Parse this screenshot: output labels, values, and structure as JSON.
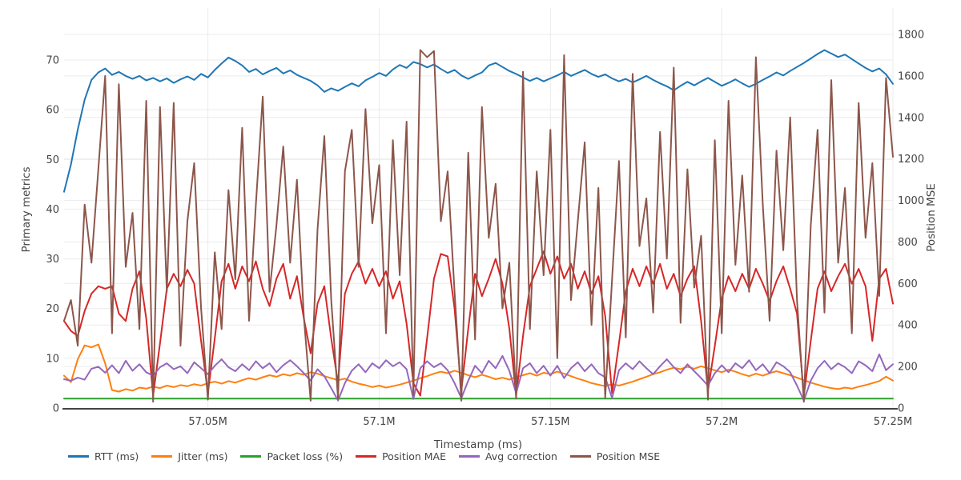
{
  "chart": {
    "x_axis": {
      "title": "Timestamp (ms)",
      "range": [
        57008000,
        57250000
      ],
      "tick_values": [
        57050000,
        57100000,
        57150000,
        57200000,
        57250000
      ],
      "tick_labels": [
        "57.05M",
        "57.1M",
        "57.15M",
        "57.2M",
        "57.25M"
      ]
    },
    "y_axis_left": {
      "title": "Primary metrics",
      "range": [
        0,
        70
      ],
      "ticks": [
        0,
        10,
        20,
        30,
        40,
        50,
        60,
        70
      ]
    },
    "y_axis_right": {
      "title": "Position MSE",
      "range": [
        0,
        1800
      ],
      "ticks": [
        0,
        200,
        400,
        600,
        800,
        1000,
        1200,
        1400,
        1600,
        1800
      ]
    },
    "style": {
      "grid_color": "#ebebeb",
      "axis_line_color": "#444444",
      "text_color": "#444444",
      "background": "#ffffff"
    }
  },
  "chart_data": {
    "type": "line",
    "title": "",
    "xlabel": "Timestamp (ms)",
    "ylabel_left": "Primary metrics",
    "ylabel_right": "Position MSE",
    "legend_position": "bottom",
    "grid": true,
    "x_start": 57008000,
    "x_step": 2000,
    "n_points": 122,
    "series": [
      {
        "name": "RTT (ms)",
        "color": "#1f77b4",
        "y_axis": "left",
        "values": [
          43.5,
          49.0,
          56.0,
          62.0,
          66.0,
          67.5,
          68.3,
          67.0,
          67.6,
          66.8,
          66.2,
          66.8,
          65.9,
          66.4,
          65.7,
          66.3,
          65.4,
          66.1,
          66.7,
          66.0,
          67.2,
          66.5,
          68.0,
          69.3,
          70.5,
          69.8,
          68.9,
          67.6,
          68.2,
          67.1,
          67.8,
          68.4,
          67.3,
          67.9,
          67.0,
          66.4,
          65.8,
          64.9,
          63.6,
          64.3,
          63.8,
          64.6,
          65.3,
          64.7,
          65.9,
          66.6,
          67.4,
          66.8,
          68.1,
          69.0,
          68.4,
          69.6,
          69.2,
          68.5,
          69.1,
          68.2,
          67.4,
          68.0,
          66.9,
          66.2,
          66.9,
          67.5,
          68.9,
          69.4,
          68.6,
          67.8,
          67.2,
          66.5,
          65.8,
          66.4,
          65.7,
          66.3,
          66.9,
          67.6,
          66.8,
          67.4,
          68.0,
          67.2,
          66.6,
          67.1,
          66.3,
          65.7,
          66.2,
          65.5,
          66.1,
          66.8,
          66.0,
          65.3,
          64.7,
          63.9,
          64.8,
          65.6,
          64.9,
          65.7,
          66.4,
          65.6,
          64.8,
          65.4,
          66.1,
          65.3,
          64.6,
          65.2,
          66.0,
          66.7,
          67.5,
          66.9,
          67.8,
          68.6,
          69.4,
          70.3,
          71.2,
          72.0,
          71.3,
          70.6,
          71.1,
          70.2,
          69.3,
          68.4,
          67.7,
          68.3,
          67.1,
          65.2
        ]
      },
      {
        "name": "Jitter (ms)",
        "color": "#ff7f0e",
        "y_axis": "left",
        "values": [
          6.5,
          5.2,
          9.8,
          12.6,
          12.2,
          12.8,
          9.0,
          3.6,
          3.3,
          3.8,
          3.5,
          4.1,
          3.9,
          4.3,
          4.0,
          4.5,
          4.2,
          4.6,
          4.4,
          4.8,
          4.5,
          5.0,
          5.3,
          4.9,
          5.4,
          5.1,
          5.6,
          6.0,
          5.7,
          6.2,
          6.6,
          6.3,
          6.8,
          6.5,
          7.0,
          6.7,
          7.2,
          6.9,
          6.4,
          6.0,
          5.6,
          5.9,
          5.3,
          4.9,
          4.6,
          4.2,
          4.5,
          4.1,
          4.4,
          4.7,
          5.1,
          5.5,
          6.0,
          6.4,
          6.9,
          7.3,
          7.0,
          7.5,
          7.1,
          6.6,
          6.2,
          6.7,
          6.3,
          5.8,
          6.1,
          5.7,
          6.2,
          6.6,
          7.0,
          6.5,
          7.1,
          6.8,
          7.3,
          6.9,
          6.4,
          5.9,
          5.5,
          5.0,
          4.7,
          4.4,
          4.8,
          4.5,
          4.9,
          5.3,
          5.8,
          6.3,
          6.8,
          7.2,
          7.7,
          8.1,
          7.8,
          8.3,
          7.9,
          8.4,
          8.0,
          7.6,
          7.2,
          7.7,
          7.3,
          6.8,
          6.4,
          6.9,
          6.5,
          7.0,
          7.4,
          7.0,
          6.6,
          6.1,
          5.6,
          5.1,
          4.7,
          4.3,
          4.0,
          3.8,
          4.1,
          3.9,
          4.3,
          4.6,
          5.0,
          5.4,
          6.3,
          5.5
        ]
      },
      {
        "name": "Packet loss (%)",
        "color": "#2ca02c",
        "y_axis": "left",
        "constant": 1.9
      },
      {
        "name": "Position MAE",
        "color": "#d62728",
        "y_axis": "left",
        "values": [
          17.5,
          15.5,
          14.5,
          19.5,
          23.0,
          24.5,
          24.0,
          24.5,
          19.0,
          17.5,
          24.0,
          27.5,
          18.0,
          2.5,
          13.0,
          24.0,
          27.0,
          24.5,
          27.8,
          25.0,
          13.5,
          3.0,
          14.0,
          25.5,
          29.0,
          24.0,
          28.5,
          25.5,
          29.5,
          24.0,
          20.5,
          26.0,
          29.0,
          22.0,
          26.5,
          18.0,
          11.0,
          21.0,
          24.5,
          14.0,
          5.0,
          23.0,
          27.0,
          29.5,
          25.0,
          28.0,
          24.5,
          27.5,
          22.0,
          25.5,
          17.0,
          5.0,
          2.5,
          14.0,
          26.0,
          31.0,
          30.5,
          20.0,
          3.5,
          16.0,
          27.0,
          22.5,
          26.0,
          30.0,
          25.0,
          16.0,
          2.5,
          14.5,
          24.5,
          28.0,
          31.5,
          27.0,
          30.5,
          26.0,
          29.0,
          24.0,
          27.5,
          23.0,
          26.5,
          18.5,
          3.0,
          13.0,
          23.5,
          28.0,
          24.5,
          28.5,
          25.0,
          29.0,
          24.0,
          27.0,
          22.5,
          26.0,
          28.5,
          17.5,
          3.5,
          12.5,
          22.0,
          26.5,
          23.5,
          27.0,
          24.0,
          28.0,
          25.0,
          21.5,
          25.5,
          28.5,
          24.0,
          19.0,
          2.5,
          13.5,
          24.0,
          27.5,
          23.5,
          26.5,
          29.0,
          25.0,
          28.0,
          24.5,
          13.5,
          26.0,
          28.0,
          21.0
        ]
      },
      {
        "name": "Avg correction",
        "color": "#9467bd",
        "y_axis": "left",
        "values": [
          5.8,
          5.5,
          6.1,
          5.7,
          7.9,
          8.3,
          7.1,
          8.6,
          7.0,
          9.5,
          7.5,
          8.8,
          7.2,
          6.5,
          8.2,
          9.0,
          7.8,
          8.4,
          7.0,
          9.2,
          8.0,
          6.8,
          8.5,
          9.8,
          8.2,
          7.4,
          8.8,
          7.6,
          9.4,
          8.0,
          9.0,
          7.2,
          8.6,
          9.6,
          8.4,
          7.0,
          5.5,
          7.8,
          6.4,
          4.0,
          1.5,
          5.0,
          7.5,
          8.8,
          7.2,
          9.0,
          8.0,
          9.6,
          8.4,
          9.2,
          7.8,
          1.8,
          8.0,
          9.4,
          8.2,
          9.0,
          7.6,
          5.0,
          2.0,
          5.5,
          8.5,
          7.0,
          9.5,
          8.0,
          10.5,
          7.5,
          3.0,
          8.0,
          9.0,
          7.0,
          8.5,
          6.5,
          8.5,
          6.0,
          8.0,
          9.2,
          7.4,
          8.8,
          7.0,
          6.2,
          2.0,
          7.6,
          9.0,
          7.8,
          9.4,
          8.0,
          6.8,
          8.4,
          9.8,
          8.2,
          7.0,
          8.8,
          7.4,
          6.0,
          4.5,
          7.0,
          8.6,
          7.2,
          9.0,
          8.0,
          9.6,
          7.6,
          8.8,
          7.0,
          9.2,
          8.4,
          7.2,
          4.5,
          1.5,
          5.5,
          8.0,
          9.5,
          7.8,
          9.0,
          8.2,
          7.0,
          9.4,
          8.6,
          7.4,
          10.8,
          7.6,
          8.8
        ]
      },
      {
        "name": "Position MSE",
        "color": "#8c564b",
        "y_axis": "right",
        "values": [
          420,
          520,
          300,
          980,
          700,
          1150,
          1600,
          360,
          1560,
          680,
          940,
          380,
          1480,
          30,
          1450,
          560,
          1470,
          300,
          900,
          1180,
          480,
          40,
          750,
          380,
          1050,
          620,
          1350,
          420,
          980,
          1500,
          560,
          880,
          1260,
          700,
          1100,
          440,
          35,
          860,
          1310,
          520,
          45,
          1140,
          1340,
          680,
          1440,
          890,
          1170,
          360,
          1290,
          640,
          1380,
          60,
          1725,
          1690,
          1720,
          900,
          1140,
          560,
          35,
          1230,
          330,
          1450,
          820,
          1080,
          480,
          700,
          45,
          1620,
          380,
          1140,
          640,
          1340,
          240,
          1700,
          520,
          900,
          1280,
          400,
          1060,
          50,
          620,
          1190,
          340,
          1610,
          780,
          1010,
          460,
          1330,
          720,
          1640,
          410,
          1150,
          580,
          830,
          40,
          1290,
          360,
          1480,
          690,
          1120,
          560,
          1690,
          980,
          420,
          1240,
          760,
          1400,
          520,
          30,
          880,
          1340,
          460,
          1580,
          700,
          1060,
          360,
          1470,
          820,
          1180,
          540,
          1590,
          1210
        ]
      }
    ]
  }
}
